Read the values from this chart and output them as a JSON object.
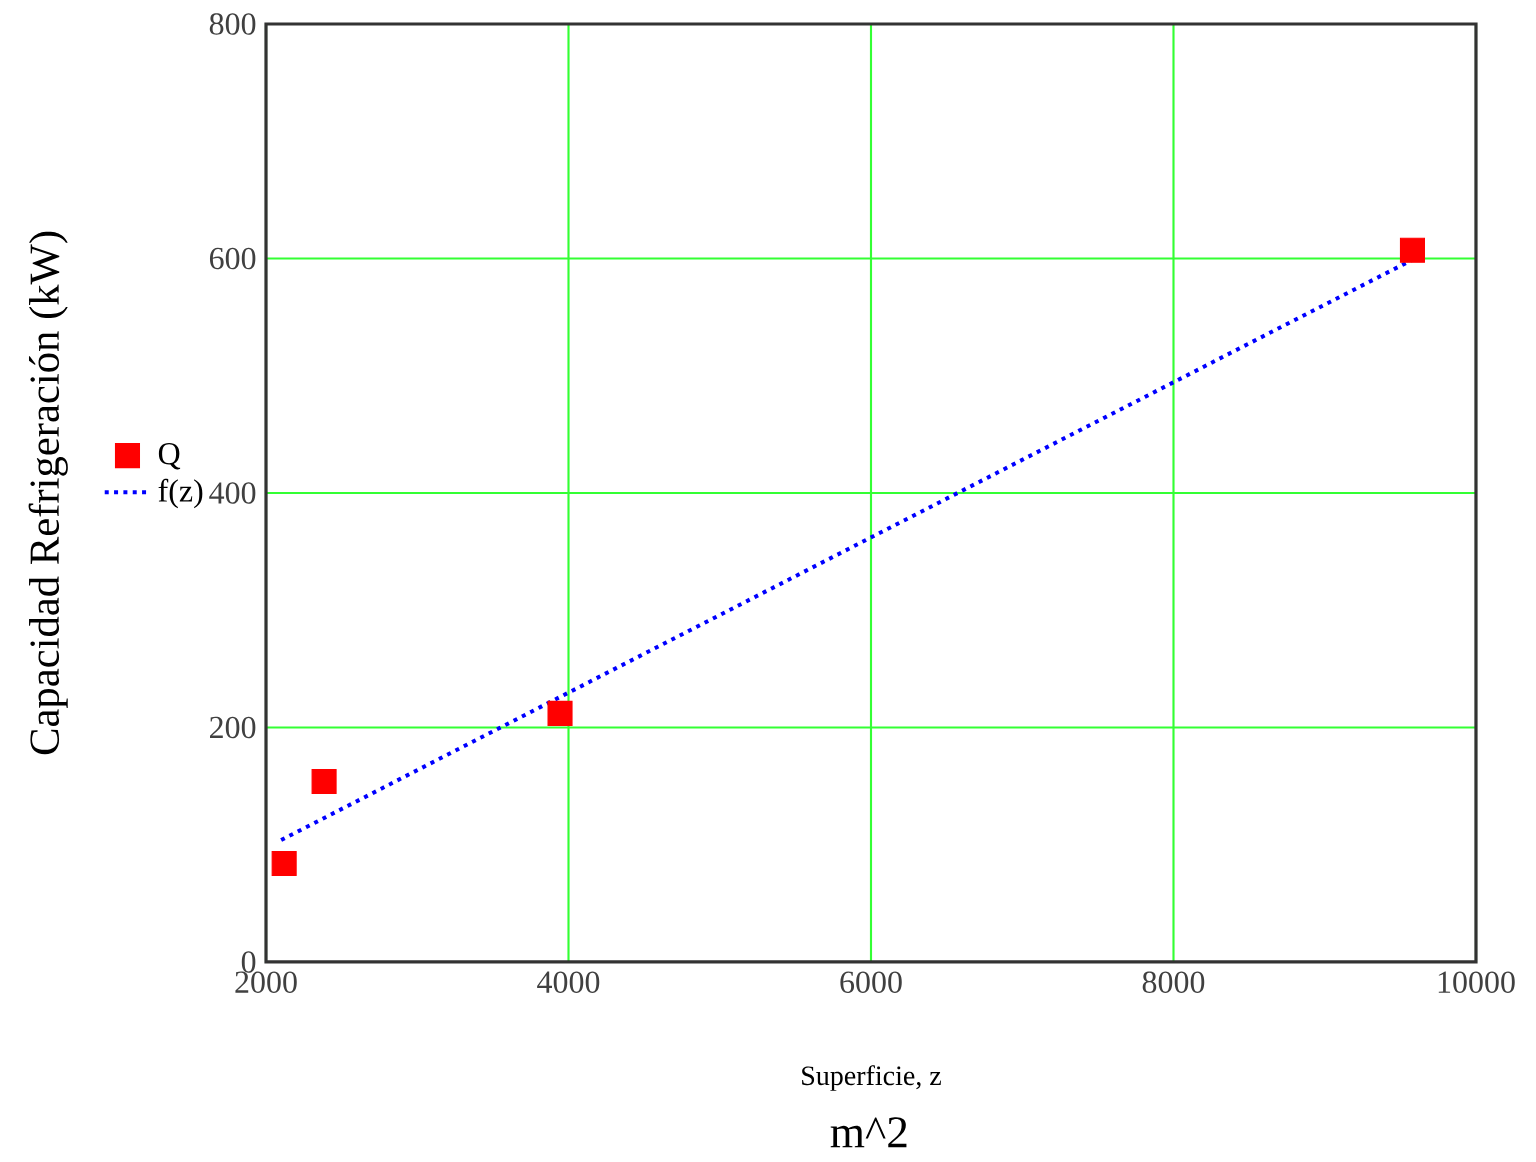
{
  "chart_data": {
    "type": "scatter",
    "xlabel": "Superficie, z",
    "ylabel": "Capacidad Refrigeración (kW)",
    "annotations": [
      "m^2"
    ],
    "xlim": [
      2000,
      10000
    ],
    "ylim": [
      0,
      800
    ],
    "xticks": [
      2000,
      4000,
      6000,
      8000,
      10000
    ],
    "yticks": [
      0,
      200,
      400,
      600,
      800
    ],
    "grid": true,
    "legend": "left",
    "series": [
      {
        "name": "Q",
        "color": "#ff0000",
        "marker": "square",
        "x": [
          2120,
          2384,
          3944,
          9580
        ],
        "values": [
          84,
          154,
          212,
          607
        ]
      },
      {
        "name": "f(z)",
        "type": "line",
        "color": "#0000ff",
        "line_style": "dotted",
        "marker": "none",
        "x": [
          2100,
          9580
        ],
        "values": [
          104,
          599
        ]
      }
    ]
  }
}
